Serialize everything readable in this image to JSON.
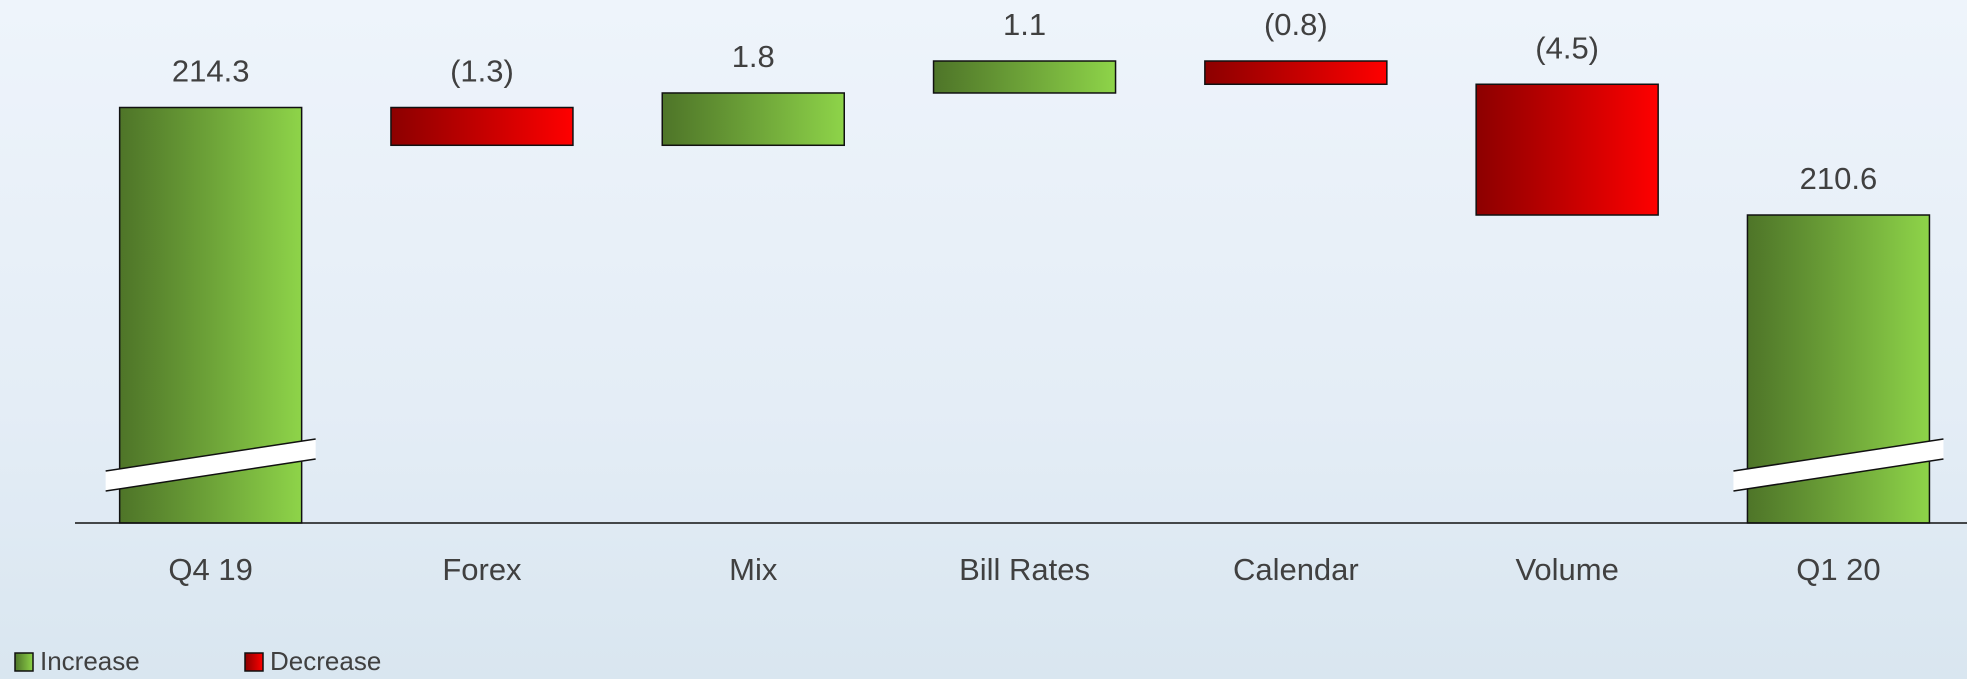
{
  "chart_data": {
    "type": "waterfall",
    "categories": [
      "Q4 19",
      "Forex",
      "Mix",
      "Bill Rates",
      "Calendar",
      "Volume",
      "Q1 20"
    ],
    "values": [
      214.3,
      -1.3,
      1.8,
      1.1,
      -0.8,
      -4.5,
      210.6
    ],
    "value_labels": [
      "214.3",
      "(1.3)",
      "1.8",
      "1.1",
      "(0.8)",
      "(4.5)",
      "210.6"
    ],
    "ylim": [
      200,
      218
    ],
    "legend": [
      "Increase",
      "Decrease"
    ],
    "increase_color": "#8ed449",
    "decrease_color": "#ff0000"
  }
}
